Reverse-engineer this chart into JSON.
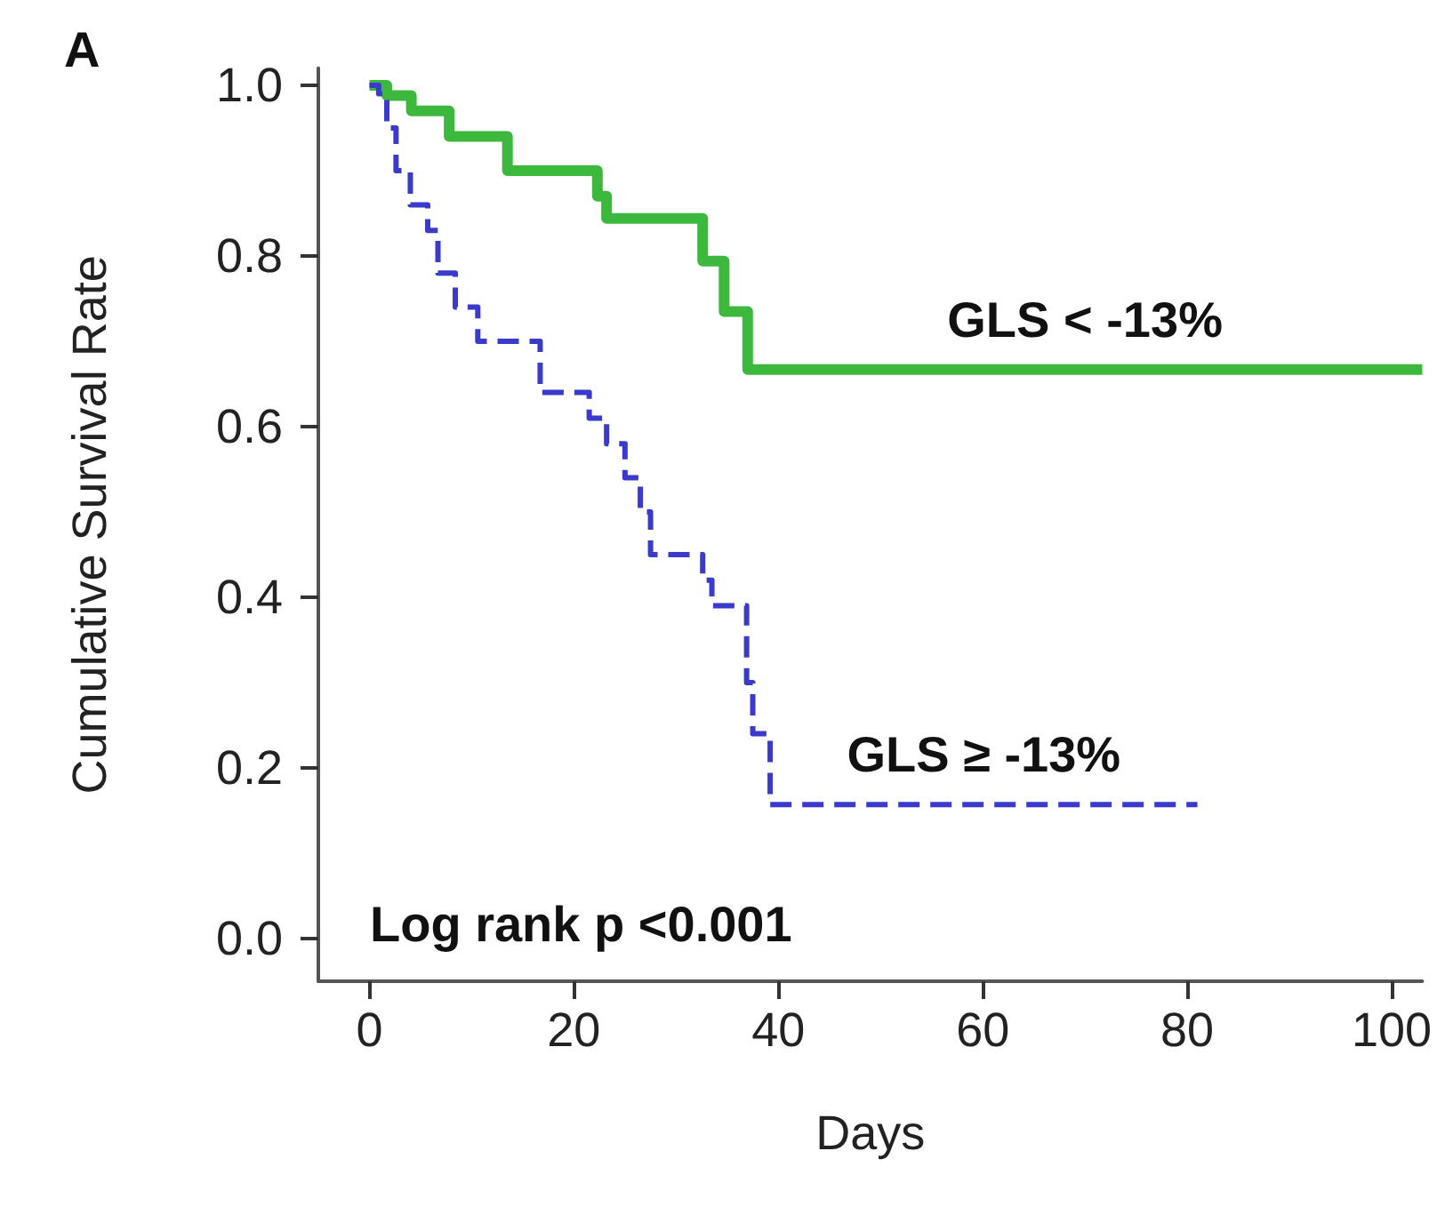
{
  "chart_data": {
    "type": "step",
    "xlabel": "Days",
    "ylabel": "Cumulative Survival Rate",
    "xlim": [
      -5,
      103
    ],
    "ylim": [
      -0.05,
      1.02
    ],
    "xticks": [
      0,
      20,
      40,
      60,
      80,
      100
    ],
    "yticks": [
      {
        "value": 0,
        "label": "0.0"
      },
      {
        "value": 0.2,
        "label": "0.2"
      },
      {
        "value": 0.4,
        "label": "0.4"
      },
      {
        "value": 0.6,
        "label": "0.6"
      },
      {
        "value": 0.8,
        "label": "0.8"
      },
      {
        "value": 1,
        "label": "1.0"
      }
    ],
    "grid": false,
    "legend": false,
    "series": [
      {
        "name": "GLS < -13%",
        "color": "#3cb83c",
        "line_style": "solid",
        "x": [
          0,
          1.7,
          4.1,
          7.8,
          13.5,
          22.3,
          23.2,
          32.6,
          34.7,
          37,
          103
        ],
        "values": [
          1.0,
          0.988,
          0.97,
          0.94,
          0.9,
          0.87,
          0.844,
          0.794,
          0.735,
          0.667,
          0.667
        ]
      },
      {
        "name": "GLS ≥ -13%",
        "color": "#3a3acc",
        "line_style": "dashed",
        "x": [
          0,
          0.9,
          1.7,
          2.6,
          4,
          5.7,
          6.7,
          8.4,
          10.6,
          16.7,
          21.5,
          23.2,
          25,
          26.5,
          27.5,
          32.6,
          33.5,
          36.9,
          37.5,
          39.2,
          81
        ],
        "values": [
          1.0,
          0.99,
          0.95,
          0.9,
          0.86,
          0.83,
          0.78,
          0.74,
          0.7,
          0.64,
          0.61,
          0.58,
          0.54,
          0.5,
          0.45,
          0.42,
          0.39,
          0.3,
          0.24,
          0.157,
          0.157
        ]
      }
    ],
    "annotations": [
      "A",
      "Log rank p <0.001"
    ]
  }
}
